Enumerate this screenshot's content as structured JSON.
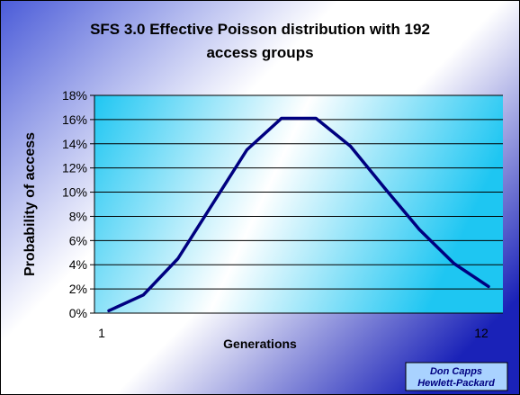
{
  "chart_data": {
    "type": "line",
    "title": "SFS 3.0 Effective Poisson distribution with 192 access groups",
    "title_lines": [
      "SFS 3.0 Effective Poisson distribution with 192",
      "access groups"
    ],
    "xlabel": "Generations",
    "ylabel": "Probability of access",
    "x": [
      1,
      2,
      3,
      4,
      5,
      6,
      7,
      8,
      9,
      10,
      11,
      12
    ],
    "series": [
      {
        "values": [
          0.2,
          1.5,
          4.5,
          9.0,
          13.5,
          16.1,
          16.1,
          13.8,
          10.3,
          6.9,
          4.1,
          2.2
        ]
      }
    ],
    "x_tick_labels": [
      "1",
      "12"
    ],
    "y_tick_labels": [
      "0%",
      "2%",
      "4%",
      "6%",
      "8%",
      "10%",
      "12%",
      "14%",
      "16%",
      "18%"
    ],
    "ylim": [
      0,
      18
    ],
    "xlim": [
      1,
      12
    ],
    "y_unit": "%",
    "grid": "horizontal",
    "legend": "none",
    "line_color": "#000080"
  },
  "credit": {
    "line1": "Don Capps",
    "line2": "Hewlett-Packard"
  },
  "colors": {
    "background_light": "#ffffff",
    "background_dark": "#1a22b8",
    "plot_light": "#ffffff",
    "plot_dark": "#1ec6f2",
    "credit_bg": "#a9d2ff",
    "credit_text": "#000080"
  }
}
